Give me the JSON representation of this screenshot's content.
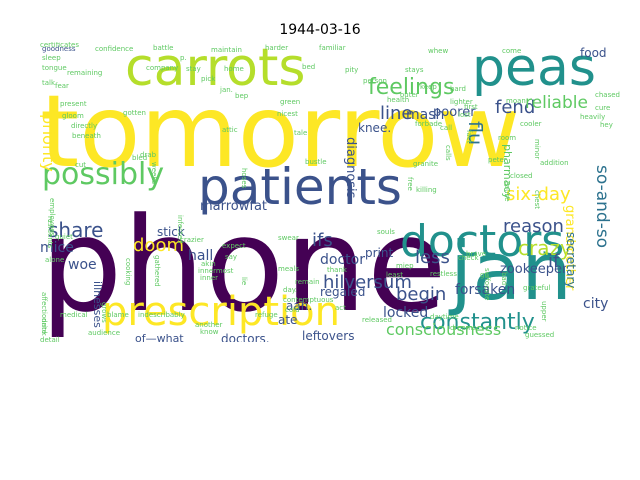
{
  "title": "1944-03-16",
  "palette": [
    "#440154",
    "#3b528b",
    "#21918c",
    "#5ec962",
    "#fde725"
  ],
  "words": [
    {
      "t": "tomorrow",
      "c": "#fde725"
    },
    {
      "t": "phone",
      "c": "#440154"
    },
    {
      "t": "patients",
      "c": "#3b528b"
    },
    {
      "t": "carrots",
      "c": "#b5de2b"
    },
    {
      "t": "peas",
      "c": "#21918c"
    },
    {
      "t": "doctors",
      "c": "#21918c"
    },
    {
      "t": "jan",
      "c": "#21918c"
    },
    {
      "t": "prescription",
      "c": "#fde725"
    },
    {
      "t": "possibly",
      "c": "#5ec962"
    },
    {
      "t": "feelings",
      "c": "#5ec962"
    },
    {
      "t": "constantly",
      "c": "#21918c"
    },
    {
      "t": "consciousness",
      "c": "#5ec962"
    },
    {
      "t": "share",
      "c": "#3b528b"
    },
    {
      "t": "doom",
      "c": "#fde725"
    },
    {
      "t": "crazy",
      "c": "#b5de2b"
    },
    {
      "t": "reason",
      "c": "#3b528b"
    },
    {
      "t": "line",
      "c": "#3b528b"
    },
    {
      "t": "fend",
      "c": "#3b528b"
    },
    {
      "t": "flu",
      "c": "#2c728e"
    },
    {
      "t": "reliable",
      "c": "#5ec962"
    },
    {
      "t": "six-day",
      "c": "#fde725"
    },
    {
      "t": "so-and-so",
      "c": "#2c728e"
    },
    {
      "t": "less",
      "c": "#3b528b"
    },
    {
      "t": "ifs",
      "c": "#3b528b"
    },
    {
      "t": "begin",
      "c": "#3b528b"
    },
    {
      "t": "hilversum",
      "c": "#3b528b"
    },
    {
      "t": "locked",
      "c": "#3b528b"
    },
    {
      "t": "forsaken",
      "c": "#3b528b"
    },
    {
      "t": "if",
      "c": "#3b528b"
    },
    {
      "t": "city",
      "c": "#3b528b"
    },
    {
      "t": "hall",
      "c": "#3b528b"
    },
    {
      "t": "mice",
      "c": "#3b528b"
    },
    {
      "t": "woe",
      "c": "#3b528b"
    },
    {
      "t": "priority",
      "c": "#fde725"
    },
    {
      "t": "stick",
      "c": "#3b528b"
    },
    {
      "t": "marrowfat",
      "c": "#3b528b"
    },
    {
      "t": "mash",
      "c": "#3b528b"
    },
    {
      "t": "knee.",
      "c": "#3b528b"
    },
    {
      "t": "diagnosis",
      "c": "#3b528b"
    },
    {
      "t": "pharmacy",
      "c": "#5ec962"
    },
    {
      "t": "print",
      "c": "#3b528b"
    },
    {
      "t": "regaled",
      "c": "#3b528b"
    },
    {
      "t": "aah.",
      "c": "#3b528b"
    },
    {
      "t": "doctor",
      "c": "#3b528b"
    },
    {
      "t": "ate",
      "c": "#3b528b"
    },
    {
      "t": "leftovers",
      "c": "#3b528b"
    },
    {
      "t": "doctors.",
      "c": "#3b528b"
    },
    {
      "t": "of—what",
      "c": "#3b528b"
    },
    {
      "t": "zookeeper",
      "c": "#3b528b"
    },
    {
      "t": "grandmother",
      "c": "#fde725"
    },
    {
      "t": "secretary",
      "c": "#2c728e"
    },
    {
      "t": "illnesses",
      "c": "#3b528b"
    },
    {
      "t": "poorer",
      "c": "#3b528b"
    },
    {
      "t": "food",
      "c": "#3b528b"
    },
    {
      "t": "goodness",
      "c": "#3b528b"
    },
    {
      "t": "confidence",
      "c": "#5ec962"
    },
    {
      "t": "maintain",
      "c": "#5ec962"
    },
    {
      "t": "harder",
      "c": "#5ec962"
    },
    {
      "t": "familiar",
      "c": "#5ec962"
    },
    {
      "t": "sleep",
      "c": "#5ec962"
    },
    {
      "t": "tongue",
      "c": "#5ec962"
    },
    {
      "t": "company",
      "c": "#5ec962"
    },
    {
      "t": "stay",
      "c": "#5ec962"
    },
    {
      "t": "pick",
      "c": "#5ec962"
    },
    {
      "t": "home",
      "c": "#5ec962"
    },
    {
      "t": "pity",
      "c": "#5ec962"
    },
    {
      "t": "person",
      "c": "#5ec962"
    },
    {
      "t": "present",
      "c": "#5ec962"
    },
    {
      "t": "gotten",
      "c": "#5ec962"
    },
    {
      "t": "gloom",
      "c": "#5ec962"
    },
    {
      "t": "directly",
      "c": "#5ec962"
    },
    {
      "t": "beneath",
      "c": "#5ec962"
    },
    {
      "t": "bled",
      "c": "#5ec962"
    },
    {
      "t": "nicest",
      "c": "#5ec962"
    },
    {
      "t": "tale",
      "c": "#5ec962"
    },
    {
      "t": "moan",
      "c": "#5ec962"
    },
    {
      "t": "cooler",
      "c": "#5ec962"
    },
    {
      "t": "hey",
      "c": "#5ec962"
    },
    {
      "t": "outer",
      "c": "#5ec962"
    },
    {
      "t": "lost",
      "c": "#5ec962"
    },
    {
      "t": "bustle",
      "c": "#5ec962"
    },
    {
      "t": "granite",
      "c": "#5ec962"
    },
    {
      "t": "killing",
      "c": "#5ec962"
    },
    {
      "t": "bep",
      "c": "#5ec962"
    },
    {
      "t": "green",
      "c": "#5ec962"
    },
    {
      "t": "health",
      "c": "#5ec962"
    },
    {
      "t": "fear",
      "c": "#5ec962"
    },
    {
      "t": "talk",
      "c": "#5ec962"
    },
    {
      "t": "cure",
      "c": "#5ec962"
    },
    {
      "t": "attic",
      "c": "#5ec962"
    },
    {
      "t": "drab",
      "c": "#5ec962"
    },
    {
      "t": "cut",
      "c": "#5ec962"
    },
    {
      "t": "employees",
      "c": "#5ec962"
    },
    {
      "t": "residents",
      "c": "#5ec962"
    },
    {
      "t": "quiet",
      "c": "#5ec962"
    },
    {
      "t": "alone",
      "c": "#5ec962"
    },
    {
      "t": "affectionate",
      "c": "#5ec962"
    },
    {
      "t": "medical",
      "c": "#5ec962"
    },
    {
      "t": "blame",
      "c": "#5ec962"
    },
    {
      "t": "indescribably",
      "c": "#5ec962"
    },
    {
      "t": "another",
      "c": "#5ec962"
    },
    {
      "t": "refuge",
      "c": "#5ec962"
    },
    {
      "t": "audience",
      "c": "#5ec962"
    },
    {
      "t": "detail",
      "c": "#5ec962"
    },
    {
      "t": "drink",
      "c": "#5ec962"
    },
    {
      "t": "know",
      "c": "#5ec962"
    },
    {
      "t": "cooking",
      "c": "#5ec962"
    },
    {
      "t": "gathered",
      "c": "#5ec962"
    },
    {
      "t": "infected",
      "c": "#5ec962"
    },
    {
      "t": "crazier",
      "c": "#5ec962"
    },
    {
      "t": "expect",
      "c": "#5ec962"
    },
    {
      "t": "say",
      "c": "#5ec962"
    },
    {
      "t": "akin",
      "c": "#5ec962"
    },
    {
      "t": "inner",
      "c": "#5ec962"
    },
    {
      "t": "innermost",
      "c": "#5ec962"
    },
    {
      "t": "meals",
      "c": "#5ec962"
    },
    {
      "t": "remain",
      "c": "#5ec962"
    },
    {
      "t": "day.",
      "c": "#5ec962"
    },
    {
      "t": "thank",
      "c": "#5ec962"
    },
    {
      "t": "released",
      "c": "#5ec962"
    },
    {
      "t": "daytime",
      "c": "#5ec962"
    },
    {
      "t": "dreams",
      "c": "#5ec962"
    },
    {
      "t": "guessed",
      "c": "#5ec962"
    },
    {
      "t": "contemptuous",
      "c": "#5ec962"
    },
    {
      "t": "miep",
      "c": "#5ec962"
    },
    {
      "t": "restless",
      "c": "#5ec962"
    },
    {
      "t": "suffocate",
      "c": "#5ec962"
    },
    {
      "t": "grateful",
      "c": "#5ec962"
    },
    {
      "t": "call",
      "c": "#5ec962"
    },
    {
      "t": "notice",
      "c": "#5ec962"
    },
    {
      "t": "upper",
      "c": "#5ec962"
    },
    {
      "t": "peter",
      "c": "#5ec962"
    },
    {
      "t": "brave",
      "c": "#5ec962"
    },
    {
      "t": "check",
      "c": "#5ec962"
    },
    {
      "t": "souls",
      "c": "#5ec962"
    },
    {
      "t": "least",
      "c": "#5ec962"
    },
    {
      "t": "go",
      "c": "#5ec962"
    },
    {
      "t": "act",
      "c": "#5ec962"
    },
    {
      "t": "lighter",
      "c": "#5ec962"
    },
    {
      "t": "hard",
      "c": "#5ec962"
    },
    {
      "t": "chased",
      "c": "#5ec962"
    },
    {
      "t": "closed",
      "c": "#5ec962"
    },
    {
      "t": "addition",
      "c": "#5ec962"
    },
    {
      "t": "come",
      "c": "#5ec962"
    },
    {
      "t": "swear",
      "c": "#5ec962"
    },
    {
      "t": "weeks",
      "c": "#5ec962"
    },
    {
      "t": "hoses",
      "c": "#5ec962"
    },
    {
      "t": "battle",
      "c": "#5ec962"
    },
    {
      "t": "remaining",
      "c": "#5ec962"
    },
    {
      "t": "whew",
      "c": "#5ec962"
    },
    {
      "t": "bed",
      "c": "#5ec962"
    },
    {
      "t": "p.",
      "c": "#5ec962"
    },
    {
      "t": "jan.",
      "c": "#5ec962"
    },
    {
      "t": "first",
      "c": "#5ec962"
    },
    {
      "t": "bad",
      "c": "#5ec962"
    },
    {
      "t": "chest",
      "c": "#5ec962"
    },
    {
      "t": "room",
      "c": "#5ec962"
    },
    {
      "t": "minor",
      "c": "#5ec962"
    },
    {
      "t": "calls",
      "c": "#5ec962"
    },
    {
      "t": "free",
      "c": "#5ec962"
    },
    {
      "t": "forbade",
      "c": "#5ec962"
    },
    {
      "t": "stays",
      "c": "#5ec962"
    },
    {
      "t": "fact",
      "c": "#5ec962"
    },
    {
      "t": "cause",
      "c": "#5ec962"
    },
    {
      "t": "heavily",
      "c": "#5ec962"
    },
    {
      "t": "keep",
      "c": "#5ec962"
    },
    {
      "t": "grows",
      "c": "#5ec962"
    },
    {
      "t": "cold",
      "c": "#5ec962"
    },
    {
      "t": "lie",
      "c": "#5ec962"
    },
    {
      "t": "certificates",
      "c": "#5ec962"
    }
  ]
}
